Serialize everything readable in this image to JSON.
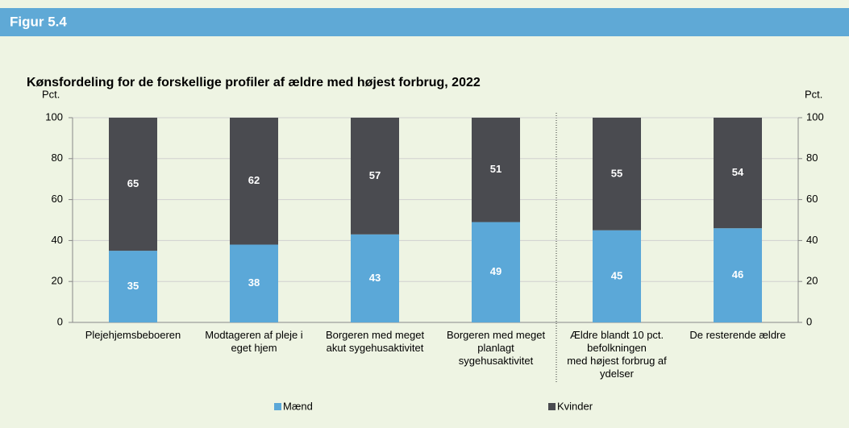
{
  "header": {
    "title": "Figur 5.4"
  },
  "chart_data": {
    "type": "stacked_bar",
    "title": "Kønsfordeling for de forskellige profiler af ældre med højest forbrug, 2022",
    "ylabel": "Pct.",
    "y2label": "Pct.",
    "categories": [
      "Plejehjemsbeboeren",
      "Modtageren af pleje i\neget hjem",
      "Borgeren med meget\nakut sygehusaktivitet",
      "Borgeren med meget\nplanlagt\nsygehusaktivitet",
      "Ældre blandt 10 pct.\nbefolkningen\nmed højest forbrug af\nydelser",
      "De resterende ældre"
    ],
    "series": [
      {
        "name": "Mænd",
        "color": "#5ba8d8",
        "values": [
          35,
          38,
          43,
          49,
          45,
          46
        ]
      },
      {
        "name": "Kvinder",
        "color": "#4a4b50",
        "values": [
          65,
          62,
          57,
          51,
          55,
          54
        ]
      }
    ],
    "ylim": [
      0,
      100
    ],
    "yticks": [
      0,
      20,
      40,
      60,
      80,
      100
    ],
    "y2lim": [
      0,
      100
    ],
    "y2ticks": [
      0,
      20,
      40,
      60,
      80,
      100
    ],
    "grid": true,
    "legend": "bottom"
  }
}
